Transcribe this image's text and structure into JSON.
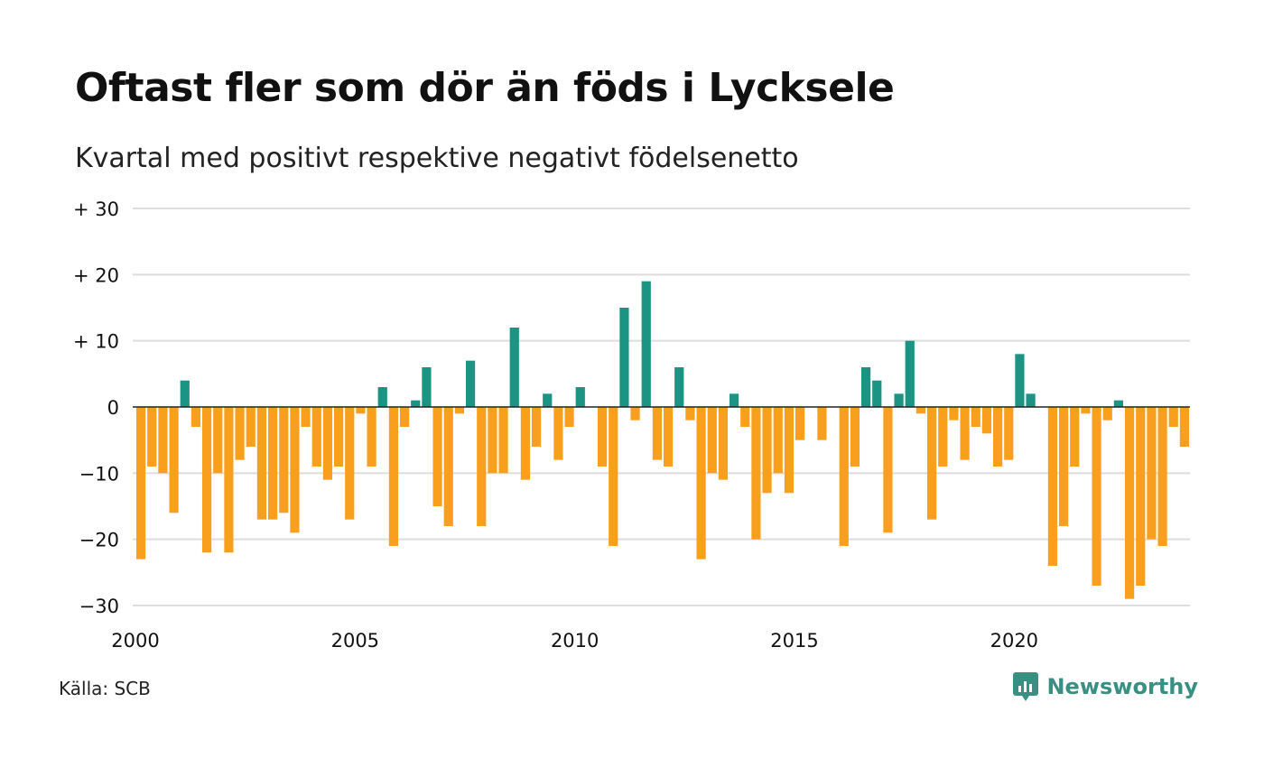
{
  "title": "Oftast fler som dör än föds i Lycksele",
  "subtitle": "Kvartal med positivt respektive negativt födelsenetto",
  "source": "Källa: SCB",
  "brand": {
    "name": "Newsworthy",
    "icon": "newsworthy-logo-icon"
  },
  "colors": {
    "positive": "#1b9484",
    "negative": "#f8a01d",
    "grid": "#dddddd",
    "zero_line": "#222222"
  },
  "chart_data": {
    "type": "bar",
    "title": "Oftast fler som dör än föds i Lycksele",
    "subtitle": "Kvartal med positivt respektive negativt födelsenetto",
    "xlabel": "",
    "ylabel": "",
    "ylim": [
      -30,
      30
    ],
    "xlim": [
      2000,
      2024
    ],
    "grid": true,
    "legend": "none",
    "x_ticks": [
      2000,
      2005,
      2010,
      2015,
      2020
    ],
    "x_tick_labels": [
      "2000",
      "2005",
      "2010",
      "2015",
      "2020"
    ],
    "y_ticks": [
      30,
      20,
      10,
      0,
      -10,
      -20,
      -30
    ],
    "y_tick_labels": [
      "+ 30",
      "+ 20",
      "+ 10",
      "0",
      "−10",
      "−20",
      "−30"
    ],
    "period": "quarter",
    "first_period": "2000 Q1",
    "values": [
      -23,
      -9,
      -10,
      -16,
      4,
      -3,
      -22,
      -10,
      -22,
      -8,
      -6,
      -17,
      -17,
      -16,
      -19,
      -3,
      -9,
      -11,
      -9,
      -17,
      -1,
      -9,
      3,
      -21,
      -3,
      1,
      6,
      -15,
      -18,
      -1,
      7,
      -18,
      -10,
      -10,
      12,
      -11,
      -6,
      2,
      -8,
      -3,
      3,
      0,
      -9,
      -21,
      15,
      -2,
      19,
      -8,
      -9,
      6,
      -2,
      -23,
      -10,
      -11,
      2,
      -3,
      -20,
      -13,
      -10,
      -13,
      -5,
      0,
      -5,
      0,
      -21,
      -9,
      6,
      4,
      -19,
      2,
      10,
      -1,
      -17,
      -9,
      -2,
      -8,
      -3,
      -4,
      -9,
      -8,
      8,
      2,
      0,
      -24,
      -18,
      -9,
      -1,
      -27,
      -2,
      1,
      -29,
      -27,
      -20,
      -21,
      -3,
      -6
    ]
  }
}
